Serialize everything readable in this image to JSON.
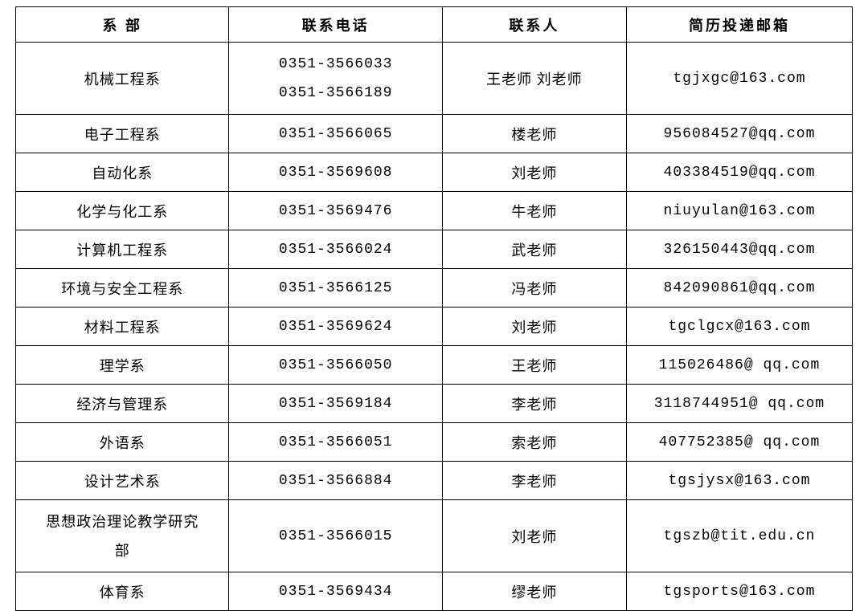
{
  "table": {
    "columns": [
      "系 部",
      "联系电话",
      "联系人",
      "简历投递邮箱"
    ],
    "column_widths": [
      "25.5%",
      "25.5%",
      "22%",
      "27%"
    ],
    "header_fontsize": 18,
    "cell_fontsize": 18,
    "border_color": "#000000",
    "background_color": "#ffffff",
    "text_color": "#000000",
    "rows": [
      {
        "dept": "机械工程系",
        "phone": "0351-3566033\n0351-3566189",
        "contact": "王老师 刘老师",
        "email": "tgjxgc@163.com",
        "tall": true
      },
      {
        "dept": "电子工程系",
        "phone": "0351-3566065",
        "contact": "楼老师",
        "email": "956084527@qq.com"
      },
      {
        "dept": "自动化系",
        "phone": "0351-3569608",
        "contact": "刘老师",
        "email": "403384519@qq.com"
      },
      {
        "dept": "化学与化工系",
        "phone": "0351-3569476",
        "contact": "牛老师",
        "email": "niuyulan@163.com"
      },
      {
        "dept": "计算机工程系",
        "phone": "0351-3566024",
        "contact": "武老师",
        "email": "326150443@qq.com"
      },
      {
        "dept": "环境与安全工程系",
        "phone": "0351-3566125",
        "contact": "冯老师",
        "email": "842090861@qq.com"
      },
      {
        "dept": "材料工程系",
        "phone": "0351-3569624",
        "contact": "刘老师",
        "email": "tgclgcx@163.com"
      },
      {
        "dept": "理学系",
        "phone": "0351-3566050",
        "contact": "王老师",
        "email": "115026486@ qq.com"
      },
      {
        "dept": "经济与管理系",
        "phone": "0351-3569184",
        "contact": "李老师",
        "email": "3118744951@ qq.com"
      },
      {
        "dept": "外语系",
        "phone": "0351-3566051",
        "contact": "索老师",
        "email": "407752385@ qq.com"
      },
      {
        "dept": "设计艺术系",
        "phone": "0351-3566884",
        "contact": "李老师",
        "email": "tgsjysx@163.com"
      },
      {
        "dept": "思想政治理论教学研究部",
        "phone": "0351-3566015",
        "contact": "刘老师",
        "email": "tgszb@tit.edu.cn",
        "tall": true
      },
      {
        "dept": "体育系",
        "phone": "0351-3569434",
        "contact": "缪老师",
        "email": "tgsports@163.com"
      }
    ]
  }
}
